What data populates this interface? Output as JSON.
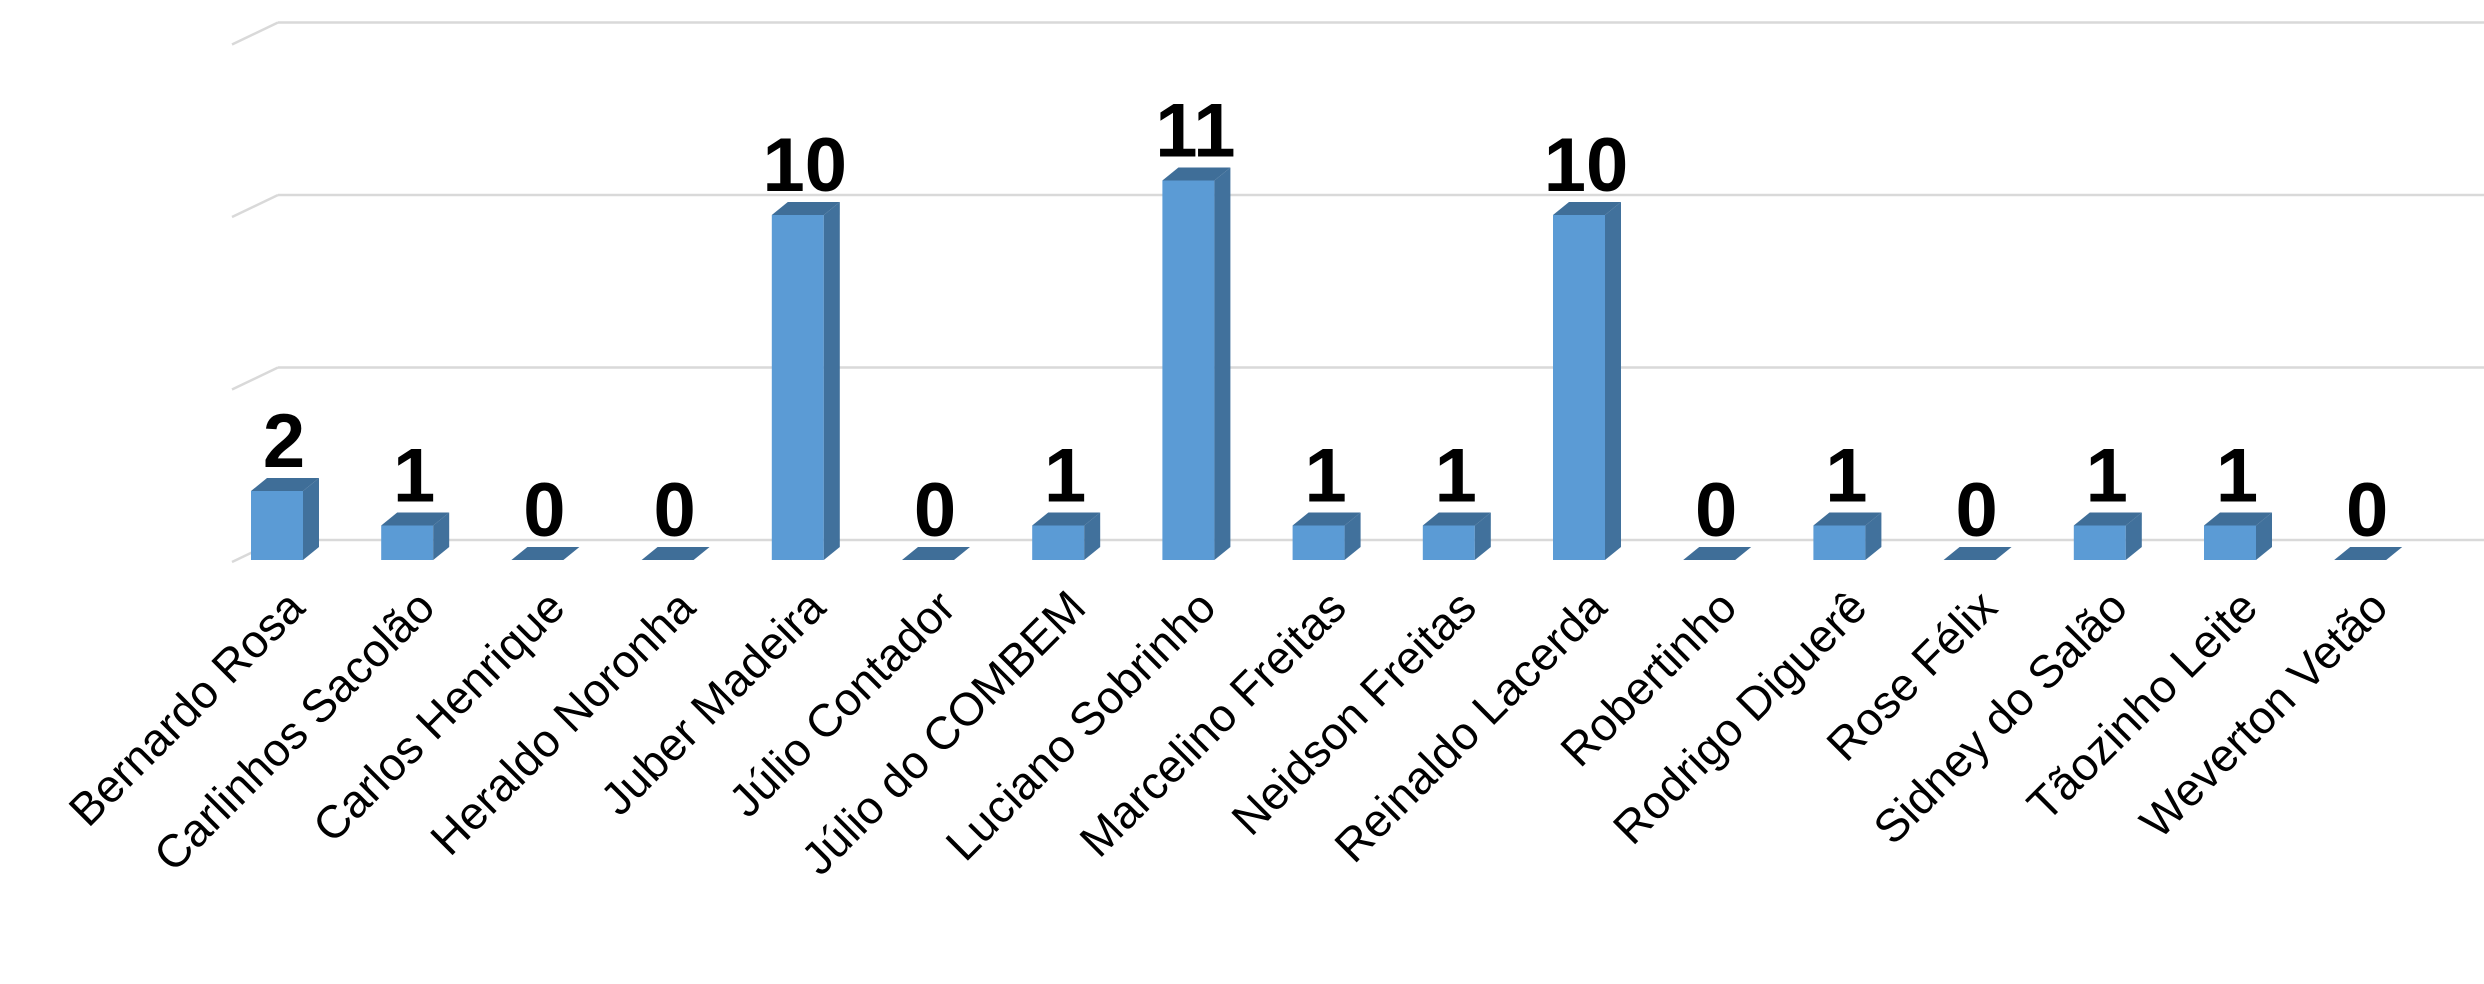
{
  "chart_data": {
    "type": "bar",
    "categories": [
      "Bernardo Rosa",
      "Carlinhos Sacolão",
      "Carlos Henrique",
      "Heraldo Noronha",
      "Juber Madeira",
      "Júlio Contador",
      "Júlio do COMBEM",
      "Luciano Sobrinho",
      "Marcelino Freitas",
      "Neidson Freitas",
      "Reinaldo Lacerda",
      "Robertinho",
      "Rodrigo Diguerê",
      "Rose Félix",
      "Sidney do Salão",
      "Tãozinho Leite",
      "Weverton Vetão"
    ],
    "values": [
      2,
      1,
      0,
      0,
      10,
      0,
      1,
      11,
      1,
      1,
      10,
      0,
      1,
      0,
      1,
      1,
      0
    ],
    "data_labels": [
      "2",
      "1",
      "0",
      "0",
      "10",
      "0",
      "1",
      "11",
      "1",
      "1",
      "10",
      "0",
      "1",
      "0",
      "1",
      "1",
      "0"
    ],
    "ylim": [
      0,
      15
    ],
    "gridlines": [
      0,
      5,
      10,
      15
    ],
    "grid": true,
    "legend": "none",
    "style": "3d-column",
    "colors": {
      "front": "#5b9bd5",
      "side": "#41719c",
      "top": "#3f6e98",
      "grid": "#d9d9d9"
    }
  }
}
